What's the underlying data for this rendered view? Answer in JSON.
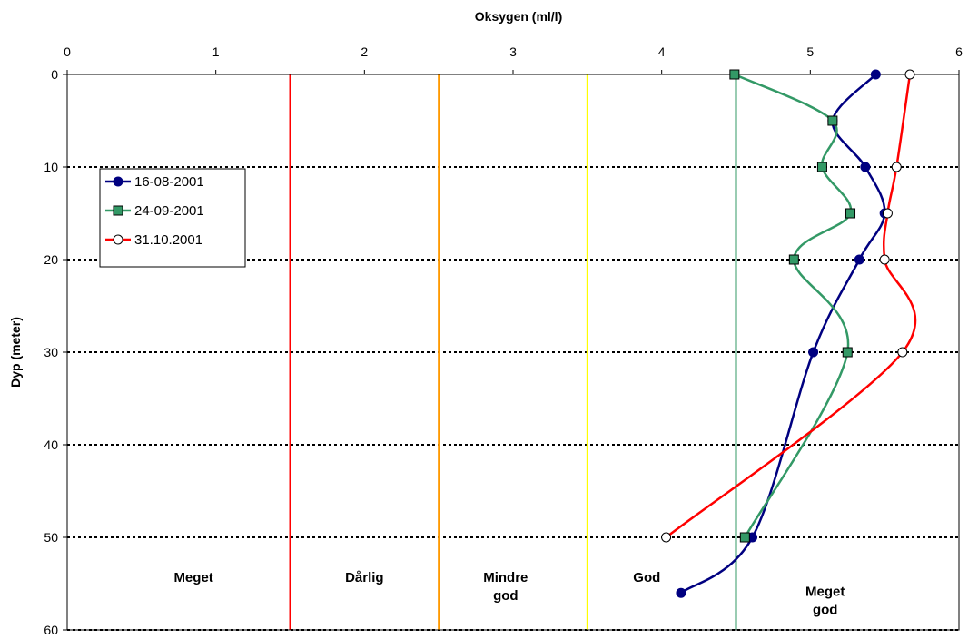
{
  "chart_data": {
    "type": "line",
    "xlabel": "Oksygen (ml/l)",
    "ylabel": "Dyp (meter)",
    "xlim": [
      0,
      6
    ],
    "ylim": [
      0,
      60
    ],
    "x_ticks": [
      "0",
      "1",
      "2",
      "3",
      "4",
      "5",
      "6"
    ],
    "y_ticks": [
      "0",
      "10",
      "20",
      "30",
      "40",
      "50",
      "60"
    ],
    "y_inverted": true,
    "x_axis_position": "top",
    "grid": "horizontal dotted",
    "legend_position": "top-left",
    "series": [
      {
        "name": "16-08-2001",
        "color": "#000080",
        "marker": "circle-filled",
        "points": [
          {
            "x": 5.44,
            "y": 0
          },
          {
            "x": 5.15,
            "y": 5
          },
          {
            "x": 5.37,
            "y": 10
          },
          {
            "x": 5.5,
            "y": 15
          },
          {
            "x": 5.33,
            "y": 20
          },
          {
            "x": 5.02,
            "y": 30
          },
          {
            "x": 4.61,
            "y": 50
          },
          {
            "x": 4.13,
            "y": 56
          }
        ]
      },
      {
        "name": "24-09-2001",
        "color": "#339966",
        "marker": "square-filled",
        "points": [
          {
            "x": 4.49,
            "y": 0
          },
          {
            "x": 5.15,
            "y": 5
          },
          {
            "x": 5.08,
            "y": 10
          },
          {
            "x": 5.27,
            "y": 15
          },
          {
            "x": 4.89,
            "y": 20
          },
          {
            "x": 5.25,
            "y": 30
          },
          {
            "x": 4.56,
            "y": 50
          }
        ]
      },
      {
        "name": "31.10.2001",
        "color": "#ff0000",
        "marker": "circle-open",
        "points": [
          {
            "x": 5.67,
            "y": 0
          },
          {
            "x": 5.58,
            "y": 10
          },
          {
            "x": 5.52,
            "y": 15
          },
          {
            "x": 5.5,
            "y": 20
          },
          {
            "x": 5.62,
            "y": 30
          },
          {
            "x": 4.03,
            "y": 50
          }
        ]
      }
    ],
    "thresholds": [
      {
        "x": 1.5,
        "color": "#ff0000"
      },
      {
        "x": 2.5,
        "color": "#ff9900"
      },
      {
        "x": 3.5,
        "color": "#ffff00"
      },
      {
        "x": 4.5,
        "color": "#339966"
      }
    ],
    "zones": [
      {
        "lines": [
          "Meget"
        ],
        "x": 0.85,
        "y": 54.8
      },
      {
        "lines": [
          "Dårlig"
        ],
        "x": 2.0,
        "y": 54.8
      },
      {
        "lines": [
          "Mindre",
          "god"
        ],
        "x": 2.95,
        "y": 54.8
      },
      {
        "lines": [
          "God"
        ],
        "x": 3.9,
        "y": 54.8
      },
      {
        "lines": [
          "Meget",
          "god"
        ],
        "x": 5.1,
        "y": 56.3
      }
    ]
  }
}
